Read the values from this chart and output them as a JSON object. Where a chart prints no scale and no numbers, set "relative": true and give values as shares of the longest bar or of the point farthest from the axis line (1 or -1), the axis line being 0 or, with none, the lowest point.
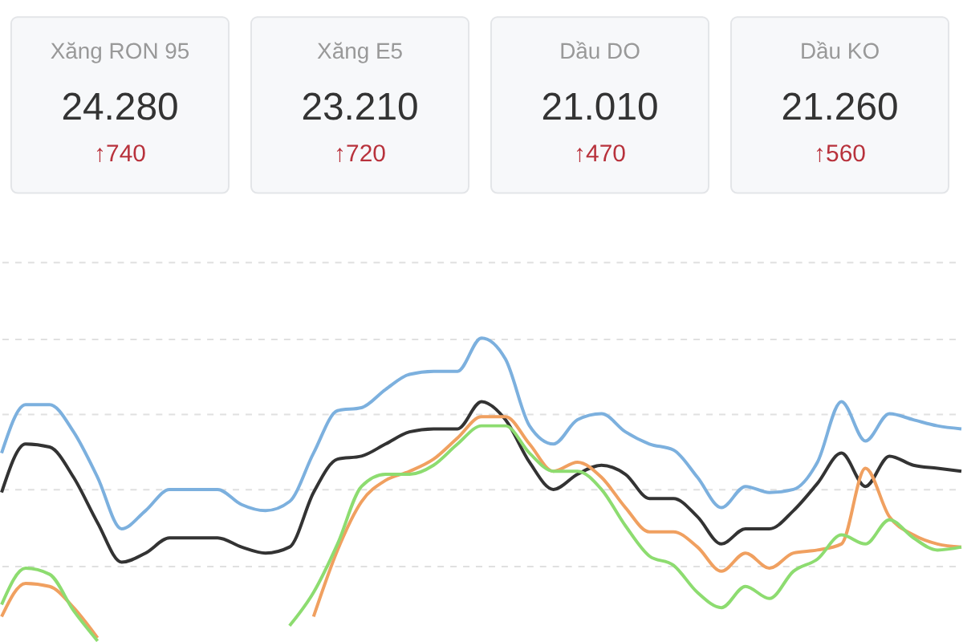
{
  "chart_data": [
    {
      "type": "other",
      "annotations": [
        "Xăng RON 95",
        "24.280",
        "↑740",
        "Xăng E5",
        "23.210",
        "↑720",
        "Dầu DO",
        "21.010",
        "↑470",
        "Dầu KO",
        "21.260",
        "↑560"
      ]
    },
    {
      "type": "line",
      "relative": true,
      "grid": "y",
      "line_style": "solid",
      "marker": "none",
      "categories": [
        null,
        null,
        null,
        null,
        null,
        null,
        null,
        null,
        null,
        null,
        null,
        null,
        null,
        null,
        null,
        null,
        null,
        null,
        null,
        null,
        null,
        null,
        null,
        null,
        null,
        null,
        null,
        null,
        null,
        null,
        null,
        null,
        null,
        null,
        null,
        null,
        null,
        null,
        null,
        null,
        null
      ],
      "series": [
        {
          "color": "#7cb0de",
          "values": [
            0.62,
            0.78,
            0.78,
            0.69,
            0.54,
            0.37,
            0.43,
            0.5,
            0.5,
            0.5,
            0.45,
            0.43,
            0.46,
            0.62,
            0.76,
            0.77,
            0.83,
            0.88,
            0.89,
            0.89,
            1.0,
            0.93,
            0.71,
            0.65,
            0.73,
            0.75,
            0.69,
            0.65,
            0.63,
            0.54,
            0.44,
            0.51,
            0.49,
            0.5,
            0.59,
            0.79,
            0.66,
            0.75,
            0.73,
            0.71,
            0.7
          ]
        },
        {
          "color": "#333333",
          "values": [
            0.49,
            0.65,
            0.64,
            0.54,
            0.39,
            0.26,
            0.29,
            0.34,
            0.34,
            0.34,
            0.31,
            0.29,
            0.31,
            0.49,
            0.6,
            0.61,
            0.65,
            0.69,
            0.7,
            0.7,
            0.79,
            0.73,
            0.59,
            0.5,
            0.55,
            0.58,
            0.55,
            0.47,
            0.47,
            0.41,
            0.32,
            0.37,
            0.37,
            0.43,
            0.52,
            0.62,
            0.51,
            0.61,
            0.58,
            0.57,
            0.56
          ]
        },
        {
          "color": "#f0a060",
          "values": [
            0.08,
            0.19,
            0.18,
            0.11,
            0.01,
            null,
            null,
            null,
            null,
            null,
            null,
            null,
            null,
            0.08,
            0.3,
            0.46,
            0.53,
            0.56,
            0.6,
            0.67,
            0.74,
            0.74,
            0.65,
            0.56,
            0.59,
            0.54,
            0.44,
            0.36,
            0.36,
            0.31,
            0.23,
            0.29,
            0.24,
            0.29,
            0.3,
            0.32,
            0.57,
            0.41,
            0.35,
            0.32,
            0.31
          ]
        },
        {
          "color": "#8ddc70",
          "values": [
            0.12,
            0.24,
            0.22,
            0.1,
            0.0,
            null,
            null,
            null,
            null,
            null,
            null,
            null,
            0.05,
            0.16,
            0.32,
            0.51,
            0.55,
            0.55,
            0.58,
            0.65,
            0.71,
            0.71,
            0.62,
            0.56,
            0.56,
            0.5,
            0.38,
            0.28,
            0.25,
            0.16,
            0.11,
            0.18,
            0.14,
            0.23,
            0.27,
            0.35,
            0.32,
            0.4,
            0.34,
            0.3,
            0.31
          ]
        }
      ]
    }
  ]
}
